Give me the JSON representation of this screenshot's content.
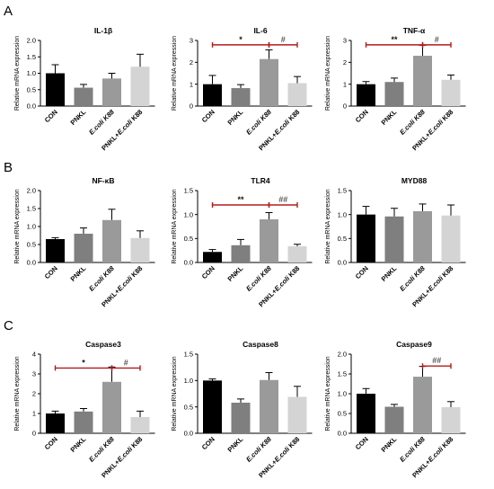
{
  "panel_labels": [
    "A",
    "B",
    "C"
  ],
  "categories": [
    {
      "parts": [
        {
          "t": "CON",
          "i": false
        }
      ]
    },
    {
      "parts": [
        {
          "t": "PNKL",
          "i": false
        }
      ]
    },
    {
      "parts": [
        {
          "t": "E.coli K88",
          "i": true
        }
      ]
    },
    {
      "parts": [
        {
          "t": "PNKL+",
          "i": false
        },
        {
          "t": "E.coli",
          "i": true
        },
        {
          "t": " K88",
          "i": false
        }
      ]
    }
  ],
  "bar_colors": [
    "#000000",
    "#7f7f7f",
    "#9a9a9a",
    "#d4d4d4"
  ],
  "ylabel": "Relative mRNA expression",
  "chart_data": [
    {
      "type": "bar",
      "title": "IL-1β",
      "ylim": [
        0,
        2.0
      ],
      "yticks": [
        "0.0",
        "0.5",
        "1.0",
        "1.5",
        "2.0"
      ],
      "ylabel": "Relative mRNA expression",
      "values": [
        1.0,
        0.56,
        0.84,
        1.2
      ],
      "errors": [
        0.26,
        0.1,
        0.16,
        0.38
      ],
      "sig": []
    },
    {
      "type": "bar",
      "title": "IL-6",
      "ylim": [
        0,
        3
      ],
      "yticks": [
        "0",
        "1",
        "2",
        "3"
      ],
      "ylabel": "Relative mRNA expression",
      "values": [
        1.0,
        0.82,
        2.15,
        1.05
      ],
      "errors": [
        0.4,
        0.16,
        0.42,
        0.3
      ],
      "sig": [
        {
          "from": 0,
          "to": 2,
          "y": 2.8,
          "label": "*"
        },
        {
          "from": 2,
          "to": 3,
          "y": 2.8,
          "label": "#"
        }
      ]
    },
    {
      "type": "bar",
      "title": "TNF-α",
      "ylim": [
        0,
        3
      ],
      "yticks": [
        "0",
        "1",
        "2",
        "3"
      ],
      "ylabel": "Relative mRNA expression",
      "values": [
        1.0,
        1.1,
        2.3,
        1.2
      ],
      "errors": [
        0.12,
        0.18,
        0.48,
        0.22
      ],
      "sig": [
        {
          "from": 0,
          "to": 2,
          "y": 2.8,
          "label": "**"
        },
        {
          "from": 2,
          "to": 3,
          "y": 2.8,
          "label": "#"
        }
      ]
    },
    {
      "type": "bar",
      "title": "NF-κB",
      "ylim": [
        0,
        2.0
      ],
      "yticks": [
        "0.0",
        "0.5",
        "1.0",
        "1.5",
        "2.0"
      ],
      "ylabel": "Relative mRNA expression",
      "values": [
        0.65,
        0.8,
        1.18,
        0.68
      ],
      "errors": [
        0.04,
        0.16,
        0.3,
        0.2
      ],
      "sig": []
    },
    {
      "type": "bar",
      "title": "TLR4",
      "ylim": [
        0,
        1.5
      ],
      "yticks": [
        "0.0",
        "0.5",
        "1.0",
        "1.5"
      ],
      "ylabel": "Relative mRNA expression",
      "values": [
        0.22,
        0.36,
        0.9,
        0.34
      ],
      "errors": [
        0.05,
        0.12,
        0.14,
        0.04
      ],
      "sig": [
        {
          "from": 0,
          "to": 2,
          "y": 1.2,
          "label": "**"
        },
        {
          "from": 2,
          "to": 3,
          "y": 1.2,
          "label": "##"
        }
      ]
    },
    {
      "type": "bar",
      "title": "MYD88",
      "ylim": [
        0,
        1.5
      ],
      "yticks": [
        "0.0",
        "0.5",
        "1.0",
        "1.5"
      ],
      "ylabel": "Relative mRNA expression",
      "values": [
        1.0,
        0.96,
        1.07,
        0.98
      ],
      "errors": [
        0.17,
        0.17,
        0.15,
        0.22
      ],
      "sig": []
    },
    {
      "type": "bar",
      "title": "Caspase3",
      "ylim": [
        0,
        4
      ],
      "yticks": [
        "0",
        "1",
        "2",
        "3",
        "4"
      ],
      "ylabel": "Relative mRNA expression",
      "values": [
        1.0,
        1.1,
        2.6,
        0.82
      ],
      "errors": [
        0.12,
        0.15,
        0.75,
        0.3
      ],
      "sig": [
        {
          "from": 0,
          "to": 2,
          "y": 3.3,
          "label": "*"
        },
        {
          "from": 2,
          "to": 3,
          "y": 3.3,
          "label": "#"
        }
      ]
    },
    {
      "type": "bar",
      "title": "Caspase8",
      "ylim": [
        0,
        1.5
      ],
      "yticks": [
        "0.0",
        "0.5",
        "1.0",
        "1.5"
      ],
      "ylabel": "Relative mRNA expression",
      "values": [
        1.0,
        0.58,
        1.01,
        0.69
      ],
      "errors": [
        0.03,
        0.07,
        0.14,
        0.2
      ],
      "sig": []
    },
    {
      "type": "bar",
      "title": "Caspase9",
      "ylim": [
        0,
        2.0
      ],
      "yticks": [
        "0.0",
        "0.5",
        "1.0",
        "1.5",
        "2.0"
      ],
      "ylabel": "Relative mRNA expression",
      "values": [
        1.0,
        0.67,
        1.43,
        0.66
      ],
      "errors": [
        0.13,
        0.06,
        0.26,
        0.14
      ],
      "sig": [
        {
          "from": 2,
          "to": 3,
          "y": 1.7,
          "label": "##"
        }
      ]
    }
  ]
}
